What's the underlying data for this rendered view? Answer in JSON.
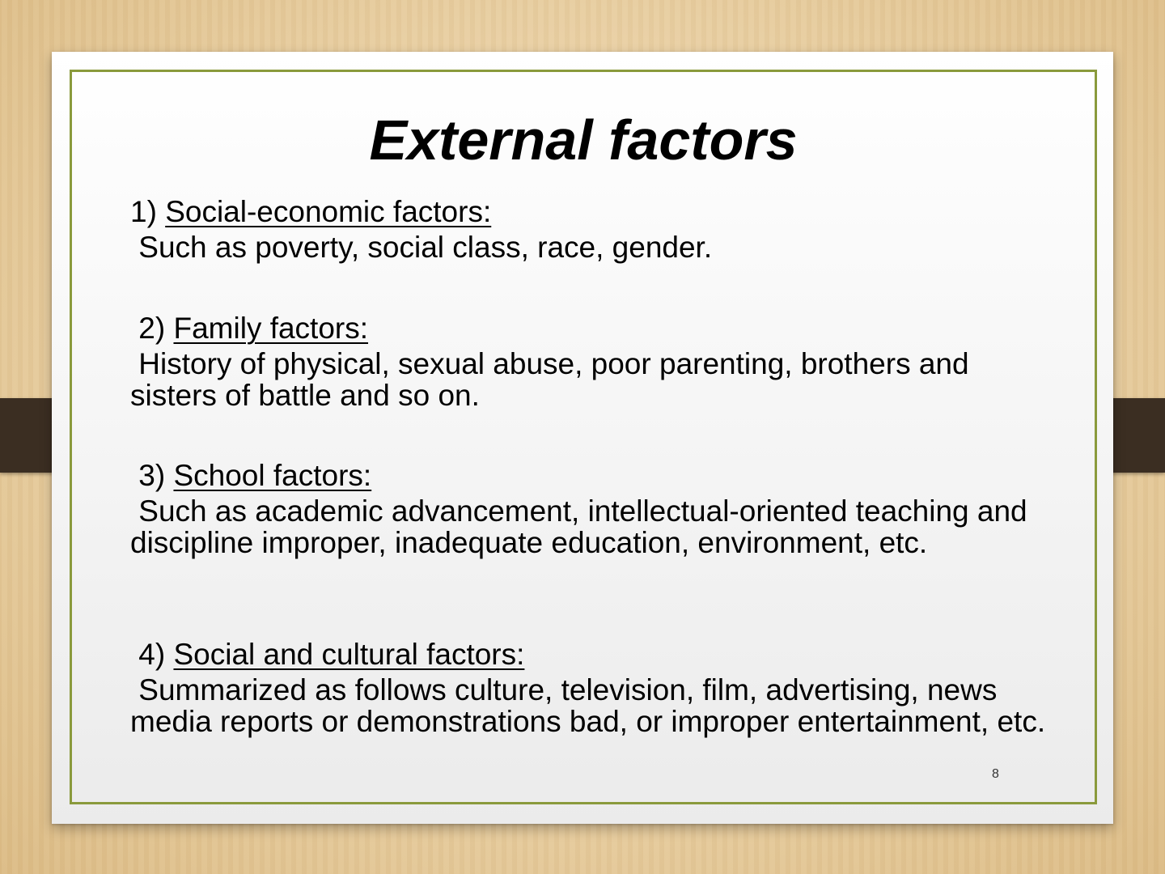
{
  "slide": {
    "title": "External factors",
    "page_number": "8",
    "accent_color": "#8a9a3c",
    "strap_color": "#3b2e22",
    "sections": [
      {
        "number": "1)",
        "heading": "Social-economic factors:",
        "body": " Such as poverty, social class, race, gender."
      },
      {
        "number": " 2)",
        "heading": "Family factors:",
        "body": " History of physical, sexual abuse, poor parenting, brothers and sisters of battle and so on."
      },
      {
        "number": " 3)",
        "heading": "School factors:",
        "body": " Such as academic advancement, intellectual-oriented teaching and discipline improper, inadequate education, environment, etc."
      },
      {
        "number": " 4)",
        "heading": "Social and cultural factors:",
        "body": " Summarized as follows culture, television, film, advertising, news media reports or demonstrations bad, or improper entertainment, etc."
      }
    ]
  }
}
